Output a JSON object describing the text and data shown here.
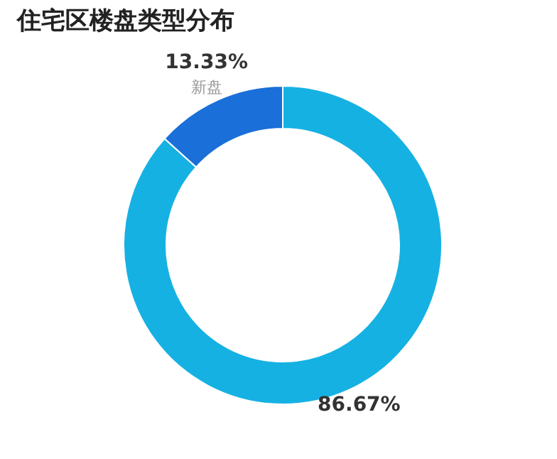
{
  "chart_data": {
    "type": "donut",
    "title": "住宅区楼盘类型分布",
    "categories": [
      null,
      "新盘"
    ],
    "values": [
      86.67,
      13.33
    ],
    "colors": [
      "#16b1e3",
      "#1a6fd9"
    ],
    "value_labels": [
      "86.67%",
      "13.33%"
    ],
    "legend": false
  }
}
